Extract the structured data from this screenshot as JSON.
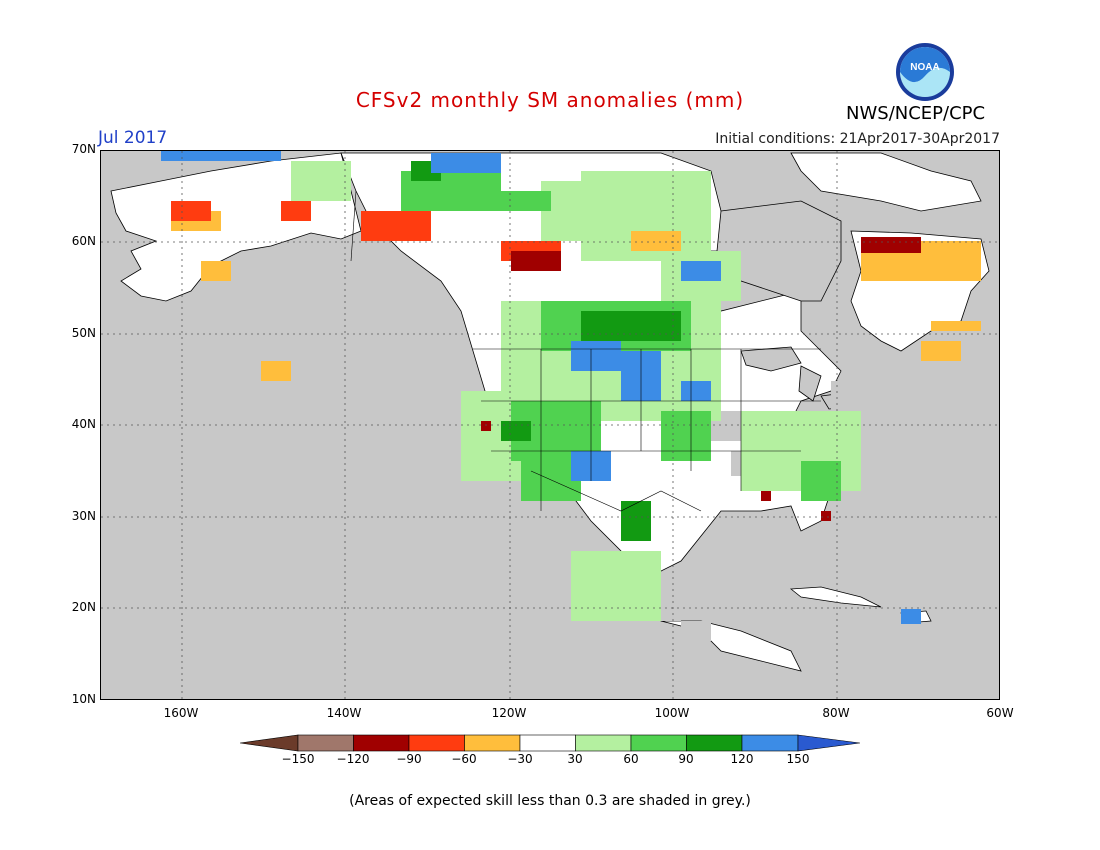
{
  "title": "CFSv2 monthly SM anomalies (mm)",
  "valid_month": "Jul 2017",
  "initial_conditions": "Initial conditions: 21Apr2017-30Apr2017",
  "agency": "NWS/NCEP/CPC",
  "logo_text": "NOAA",
  "lat_labels": [
    "70N",
    "60N",
    "50N",
    "40N",
    "30N",
    "20N",
    "10N"
  ],
  "lon_labels": [
    "160W",
    "140W",
    "120W",
    "100W",
    "80W",
    "60W"
  ],
  "colorbar": {
    "ticks": [
      "−150",
      "−120",
      "−90",
      "−60",
      "−30",
      "30",
      "60",
      "90",
      "120",
      "150"
    ],
    "colors": [
      "#6b3b2a",
      "#a0776b",
      "#a00000",
      "#ff3c10",
      "#ffbe3c",
      "#ffffff",
      "#b4f0a0",
      "#50d250",
      "#129a12",
      "#3c8ce6",
      "#2a5ad0"
    ]
  },
  "footnote": "(Areas of expected skill less than 0.3 are shaded in grey.)",
  "legend_colors": {
    "grey": "#c8c8c8",
    "white": "#ffffff",
    "light_green": "#b4f0a0",
    "green": "#50d250",
    "dark_green": "#129a12",
    "blue": "#3c8ce6",
    "orange": "#ffbe3c",
    "red": "#ff3c10",
    "dark_red": "#a00000",
    "brown": "#a0776b"
  }
}
